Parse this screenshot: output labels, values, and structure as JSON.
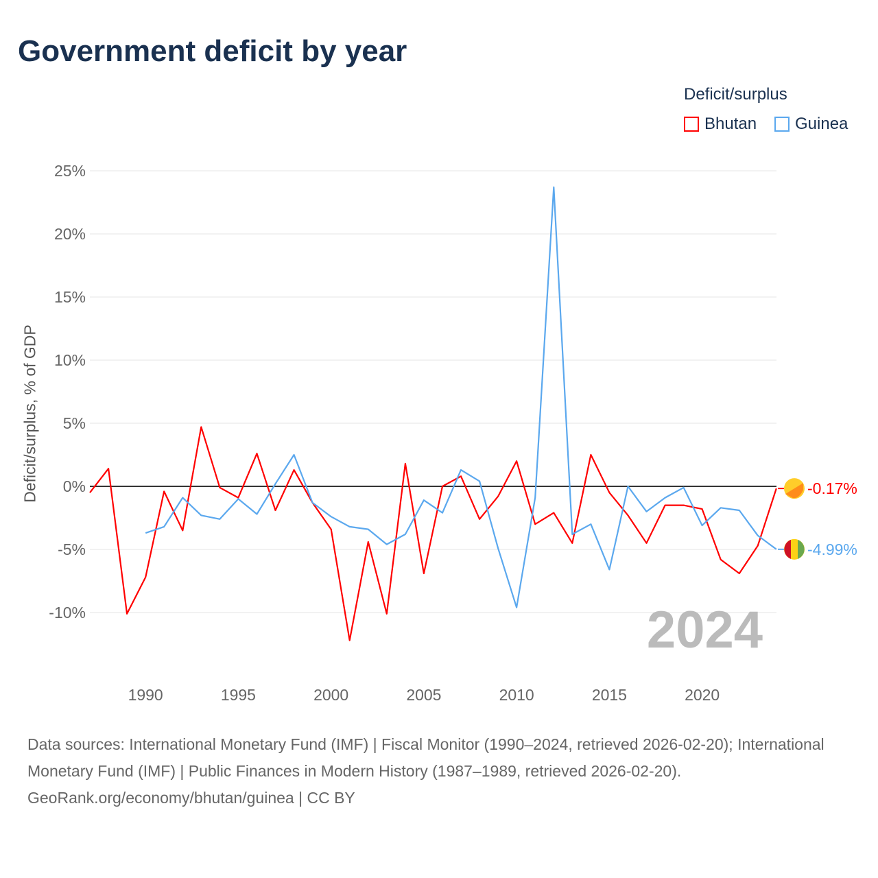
{
  "title": "Government deficit by year",
  "legend_title": "Deficit/surplus",
  "sources": [
    "Data sources: International Monetary Fund (IMF) | Fiscal Monitor (1990–2024, retrieved 2026-02-20); International Monetary Fund (IMF) | Public Finances in Modern History (1987–1989, retrieved 2026-02-20).",
    "GeoRank.org/economy/bhutan/guinea | CC BY"
  ],
  "chart_data": {
    "type": "line",
    "title": "Government deficit by year",
    "ylabel": "Deficit/surplus, % of GDP",
    "xlabel": "",
    "xlim": [
      1987,
      2024
    ],
    "ylim": [
      -14,
      26
    ],
    "yticks": [
      -10,
      -5,
      0,
      5,
      10,
      15,
      20,
      25
    ],
    "ytick_labels": [
      "-10%",
      "-5%",
      "0%",
      "5%",
      "10%",
      "15%",
      "20%",
      "25%"
    ],
    "xticks": [
      1990,
      1995,
      2000,
      2005,
      2010,
      2015,
      2020
    ],
    "year_label": "2024",
    "series": [
      {
        "name": "Bhutan",
        "color": "#ff0000",
        "end_label": "-0.17%",
        "flag": "bhutan-flag",
        "x": [
          1987,
          1988,
          1989,
          1990,
          1991,
          1992,
          1993,
          1994,
          1995,
          1996,
          1997,
          1998,
          1999,
          2000,
          2001,
          2002,
          2003,
          2004,
          2005,
          2006,
          2007,
          2008,
          2009,
          2010,
          2011,
          2012,
          2013,
          2014,
          2015,
          2016,
          2017,
          2018,
          2019,
          2020,
          2021,
          2022,
          2023,
          2024
        ],
        "values": [
          -0.5,
          1.4,
          -10.1,
          -7.2,
          -0.4,
          -3.5,
          4.7,
          -0.1,
          -0.9,
          2.6,
          -1.9,
          1.3,
          -1.3,
          -3.4,
          -12.2,
          -4.4,
          -10.1,
          1.8,
          -6.9,
          0.0,
          0.8,
          -2.6,
          -0.8,
          2.0,
          -3.0,
          -2.1,
          -4.5,
          2.5,
          -0.5,
          -2.3,
          -4.5,
          -1.5,
          -1.5,
          -1.8,
          -5.8,
          -6.9,
          -4.7,
          -0.17
        ]
      },
      {
        "name": "Guinea",
        "color": "#5ba8ee",
        "end_label": "-4.99%",
        "flag": "guinea-flag",
        "x": [
          1990,
          1991,
          1992,
          1993,
          1994,
          1995,
          1996,
          1997,
          1998,
          1999,
          2000,
          2001,
          2002,
          2003,
          2004,
          2005,
          2006,
          2007,
          2008,
          2009,
          2010,
          2011,
          2012,
          2013,
          2014,
          2015,
          2016,
          2017,
          2018,
          2019,
          2020,
          2021,
          2022,
          2023,
          2024
        ],
        "values": [
          -3.7,
          -3.2,
          -0.9,
          -2.3,
          -2.6,
          -1.0,
          -2.2,
          0.2,
          2.5,
          -1.3,
          -2.4,
          -3.2,
          -3.4,
          -4.6,
          -3.8,
          -1.1,
          -2.1,
          1.3,
          0.4,
          -4.9,
          -9.6,
          -0.9,
          23.7,
          -3.8,
          -3.0,
          -6.6,
          0.0,
          -2.0,
          -0.9,
          -0.1,
          -3.1,
          -1.7,
          -1.9,
          -3.9,
          -4.99
        ]
      }
    ]
  }
}
